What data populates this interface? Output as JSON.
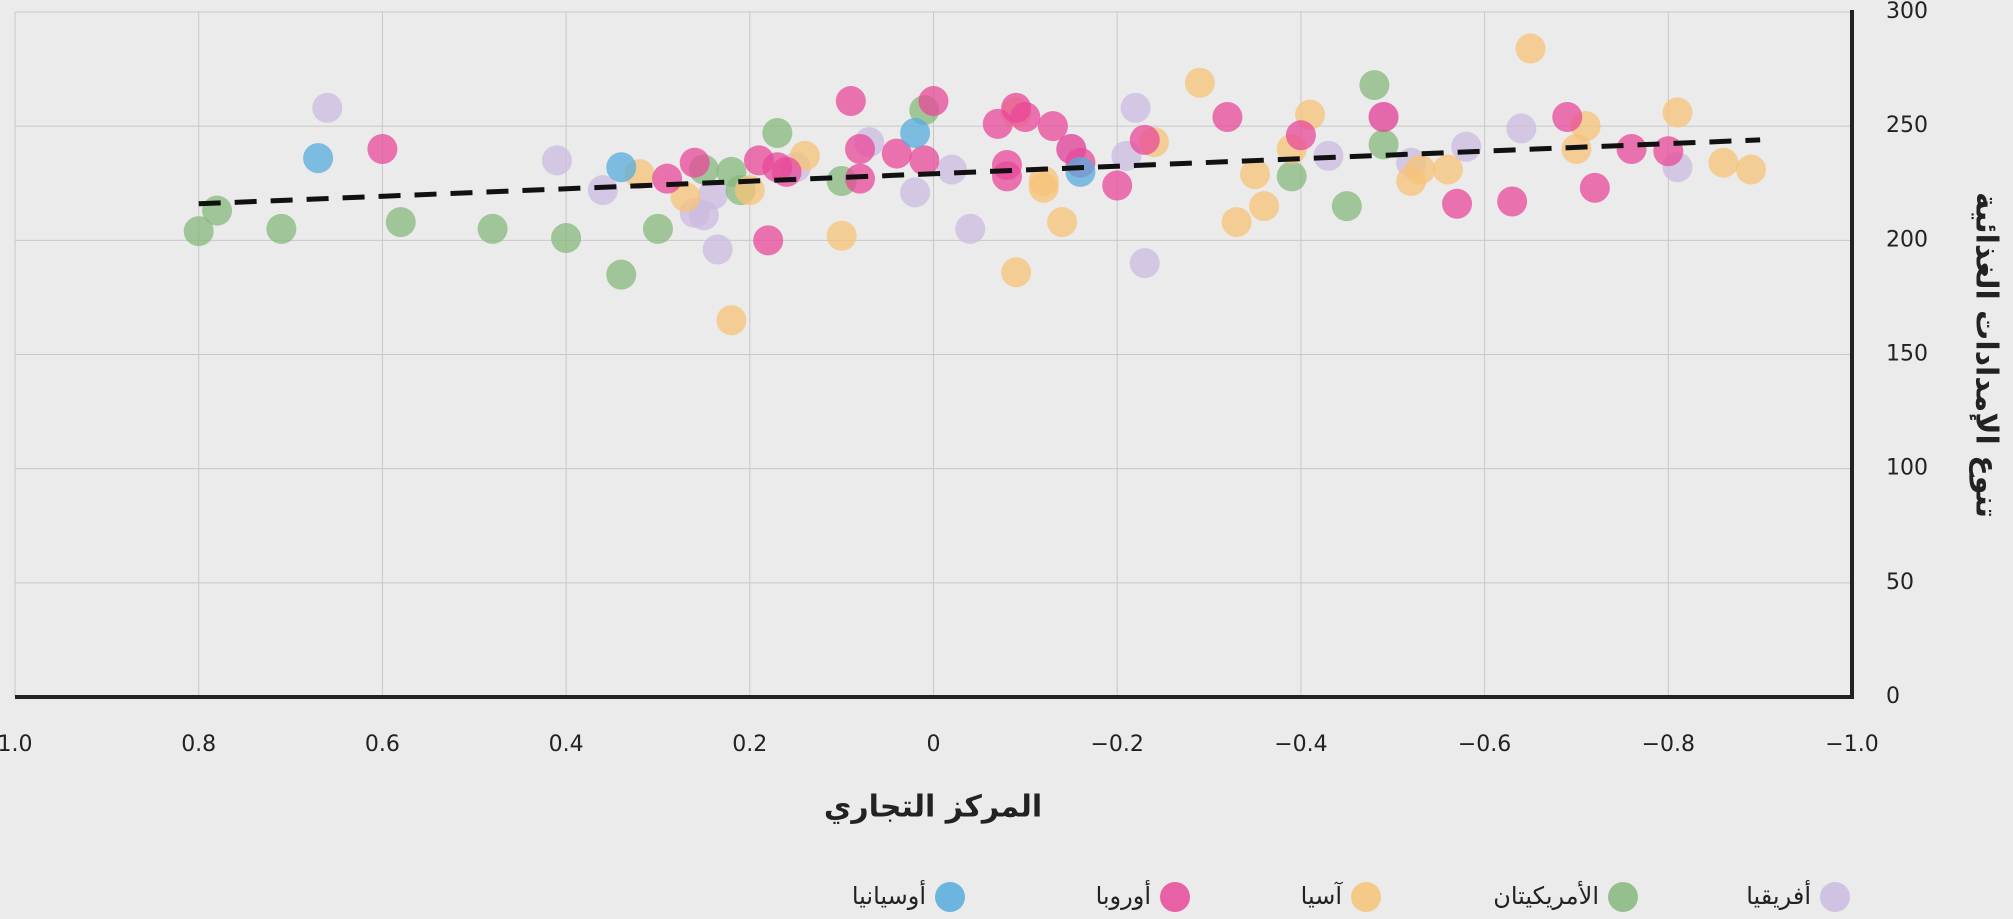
{
  "chart_data": {
    "type": "scatter",
    "x_label": "المركز التجاري",
    "y_label": "تنوع الإمدادات الغذائية",
    "xlim": [
      1,
      -1
    ],
    "ylim": [
      0,
      300
    ],
    "xticks": [
      {
        "value": 1,
        "label": "1.0"
      },
      0.8,
      0.6,
      0.4,
      0.2,
      0,
      {
        "value": -0.2,
        "label": "−0.2"
      },
      {
        "value": -0.4,
        "label": "−0.4"
      },
      {
        "value": -0.6,
        "label": "−0.6"
      },
      {
        "value": -0.8,
        "label": "−0.8"
      },
      {
        "value": -1,
        "label": "−1.0"
      }
    ],
    "yticks": [
      0,
      50,
      100,
      150,
      200,
      250,
      300
    ],
    "grid": true,
    "legend": "bottom",
    "series": [
      {
        "name": "أفريقيا",
        "color": "#cbbbe0",
        "x": [
          0.66,
          0.41,
          0.36,
          0.26,
          0.25,
          0.235,
          0.24,
          0.15,
          0.07,
          0.02,
          -0.02,
          -0.04,
          -0.15,
          -0.22,
          -0.21,
          -0.23,
          -0.43,
          -0.49,
          -0.52,
          -0.58,
          -0.64,
          -0.81
        ],
        "values": [
          258,
          235,
          222,
          212,
          211,
          196,
          220,
          232,
          243,
          221,
          231,
          205,
          240,
          258,
          237,
          190,
          237,
          254,
          234,
          241,
          249,
          232
        ]
      },
      {
        "name": "الأمريكيتان",
        "color": "#86b87c",
        "x": [
          0.8,
          0.78,
          0.71,
          0.58,
          0.48,
          0.4,
          0.34,
          0.3,
          0.25,
          0.22,
          0.21,
          0.17,
          0.1,
          0.01,
          -0.39,
          -0.45,
          -0.48,
          -0.49
        ],
        "values": [
          204,
          213,
          205,
          208,
          205,
          201,
          185,
          205,
          231,
          230,
          222,
          247,
          226,
          257,
          228,
          215,
          268,
          242
        ]
      },
      {
        "name": "آسيا",
        "color": "#f7c377",
        "x": [
          0.32,
          0.27,
          0.22,
          0.2,
          0.14,
          0.1,
          -0.09,
          -0.09,
          -0.12,
          -0.12,
          -0.14,
          -0.24,
          -0.29,
          -0.33,
          -0.35,
          -0.36,
          -0.39,
          -0.41,
          -0.52,
          -0.53,
          -0.56,
          -0.65,
          -0.7,
          -0.71,
          -0.81,
          -0.86,
          -0.89
        ],
        "values": [
          229,
          219,
          165,
          222,
          237,
          202,
          186,
          256,
          226,
          223,
          208,
          243,
          269,
          208,
          229,
          215,
          240,
          255,
          226,
          231,
          231,
          284,
          240,
          250,
          256,
          234,
          231
        ]
      },
      {
        "name": "أوروبا",
        "color": "#e8489a",
        "x": [
          0.6,
          0.29,
          0.26,
          0.18,
          0.19,
          0.17,
          0.16,
          0.09,
          0.08,
          0.08,
          0.04,
          0.01,
          0,
          -0.07,
          -0.08,
          -0.08,
          -0.09,
          -0.1,
          -0.13,
          -0.15,
          -0.16,
          -0.2,
          -0.23,
          -0.32,
          -0.4,
          -0.49,
          -0.57,
          -0.63,
          -0.69,
          -0.72,
          -0.76,
          -0.8
        ],
        "values": [
          240,
          227,
          234,
          200,
          235,
          232,
          230,
          261,
          240,
          227,
          238,
          235,
          261,
          251,
          233,
          228,
          258,
          254,
          250,
          240,
          234,
          224,
          244,
          254,
          246,
          254,
          216,
          217,
          254,
          223,
          240,
          239
        ]
      },
      {
        "name": "أوسيانيا",
        "color": "#55acdc",
        "x": [
          0.67,
          0.34,
          0.02,
          -0.16
        ],
        "values": [
          236,
          232,
          247,
          230
        ]
      }
    ],
    "trendline": {
      "x": [
        0.8,
        -0.9
      ],
      "values": [
        216,
        244
      ]
    }
  }
}
